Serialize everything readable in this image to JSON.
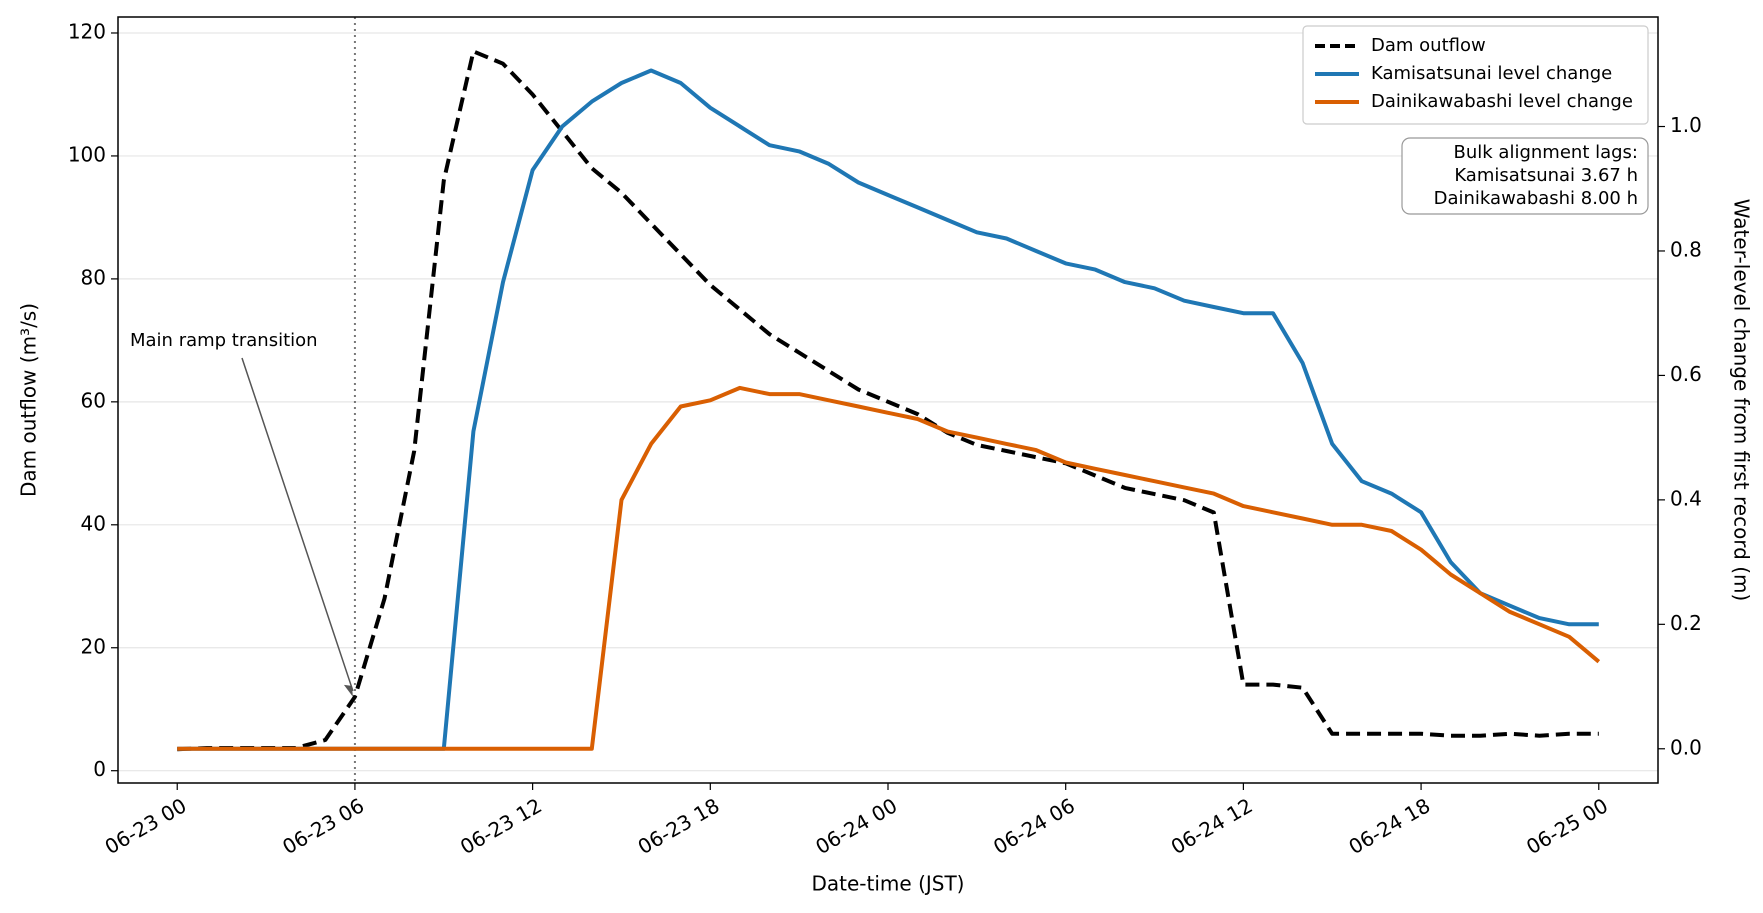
{
  "chart_data": {
    "type": "line",
    "xlabel": "Date-time (JST)",
    "ylabel": "Dam outflow (m³/s)",
    "y2label": "Water-level change from first record (m)",
    "x": [
      "06-23 00",
      "06-23 01",
      "06-23 02",
      "06-23 03",
      "06-23 04",
      "06-23 05",
      "06-23 06",
      "06-23 07",
      "06-23 08",
      "06-23 09",
      "06-23 10",
      "06-23 11",
      "06-23 12",
      "06-23 13",
      "06-23 14",
      "06-23 15",
      "06-23 16",
      "06-23 17",
      "06-23 18",
      "06-23 19",
      "06-23 20",
      "06-23 21",
      "06-23 22",
      "06-23 23",
      "06-24 00",
      "06-24 01",
      "06-24 02",
      "06-24 03",
      "06-24 04",
      "06-24 05",
      "06-24 06",
      "06-24 07",
      "06-24 08",
      "06-24 09",
      "06-24 10",
      "06-24 11",
      "06-24 12",
      "06-24 13",
      "06-24 14",
      "06-24 15",
      "06-24 16",
      "06-24 17",
      "06-24 18",
      "06-24 19",
      "06-24 20",
      "06-24 21",
      "06-24 22",
      "06-24 23",
      "06-25 00"
    ],
    "series": [
      {
        "name": "Dam outflow",
        "color": "#000000",
        "dash": true,
        "values": [
          3.5,
          3.7,
          3.7,
          3.7,
          3.7,
          5,
          12,
          28,
          52,
          96,
          117,
          115,
          110,
          104,
          98,
          94,
          89,
          84,
          79,
          75,
          71,
          68,
          65,
          62,
          60,
          58,
          55,
          53,
          52,
          51,
          50,
          48,
          46,
          45,
          44,
          42,
          14,
          14,
          13.5,
          6,
          6,
          6,
          6,
          5.7,
          5.7,
          6,
          5.7,
          6,
          6
        ]
      },
      {
        "name": "Kamisatsunai level change",
        "color": "#1f77b4",
        "axis": "y2",
        "values": [
          0,
          0,
          0,
          0,
          0,
          0,
          0,
          0,
          0,
          0,
          0.51,
          0.75,
          0.93,
          1.0,
          1.04,
          1.07,
          1.09,
          1.07,
          1.03,
          1.0,
          0.97,
          0.96,
          0.94,
          0.91,
          0.89,
          0.87,
          0.85,
          0.83,
          0.82,
          0.8,
          0.78,
          0.77,
          0.75,
          0.74,
          0.72,
          0.71,
          0.7,
          0.7,
          0.62,
          0.49,
          0.43,
          0.41,
          0.38,
          0.3,
          0.25,
          0.23,
          0.21,
          0.2,
          0.2
        ]
      },
      {
        "name": "Dainikawabashi level change",
        "color": "#d95f02",
        "axis": "y2",
        "values": [
          0,
          0,
          0,
          0,
          0,
          0,
          0,
          0,
          0,
          0,
          0,
          0,
          0,
          0,
          0,
          0.4,
          0.49,
          0.55,
          0.56,
          0.58,
          0.57,
          0.57,
          0.56,
          0.55,
          0.54,
          0.53,
          0.51,
          0.5,
          0.49,
          0.48,
          0.46,
          0.45,
          0.44,
          0.43,
          0.42,
          0.41,
          0.39,
          0.38,
          0.37,
          0.36,
          0.36,
          0.35,
          0.32,
          0.28,
          0.25,
          0.22,
          0.2,
          0.18,
          0.14
        ]
      }
    ],
    "xlim": [
      "06-22 22",
      "06-25 02"
    ],
    "xticks": [
      "06-23 00",
      "06-23 06",
      "06-23 12",
      "06-23 18",
      "06-24 00",
      "06-24 06",
      "06-24 12",
      "06-24 18",
      "06-25 00"
    ],
    "ylim": [
      -2,
      122.6
    ],
    "yticks": [
      0,
      20,
      40,
      60,
      80,
      100,
      120
    ],
    "y2lim": [
      -0.055,
      1.176
    ],
    "y2ticks": [
      {
        "value": 0,
        "label": "0.0"
      },
      {
        "value": 0.2,
        "label": "0.2"
      },
      {
        "value": 0.4,
        "label": "0.4"
      },
      {
        "value": 0.6,
        "label": "0.6"
      },
      {
        "value": 0.8,
        "label": "0.8"
      },
      {
        "value": 1,
        "label": "1.0"
      }
    ],
    "grid": true,
    "legend": "upper right",
    "vline": "06-23 06",
    "annotation": "Main ramp transition",
    "text_box": [
      "Bulk alignment lags:",
      "Kamisatsunai 3.67 h",
      "Dainikawabashi 8.00 h"
    ]
  }
}
